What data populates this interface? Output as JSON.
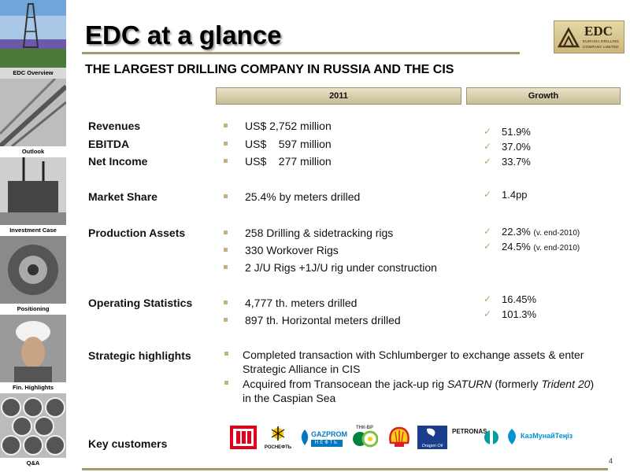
{
  "sidebar": {
    "items": [
      {
        "label": "EDC Overview",
        "active": true
      },
      {
        "label": "Outlook",
        "active": false
      },
      {
        "label": "Investment Case",
        "active": false
      },
      {
        "label": "Positioning",
        "active": false
      },
      {
        "label": "Fin. Highlights",
        "active": false
      },
      {
        "label": "Q&A",
        "active": false
      }
    ]
  },
  "header": {
    "title": "EDC at a glance",
    "subtitle": "THE LARGEST DRILLING COMPANY IN RUSSIA  AND THE CIS",
    "logo_main": "EDC",
    "logo_sub_1": "EURASIA DRILLING",
    "logo_sub_2": "COMPANY LIMITED"
  },
  "columns": {
    "year": "2011",
    "growth": "Growth"
  },
  "rows": {
    "revenues_label": "Revenues",
    "ebitda_label": "EBITDA",
    "net_income_label": "Net Income",
    "market_share_label": "Market Share",
    "production_assets_label": "Production Assets",
    "operating_statistics_label": "Operating Statistics",
    "strategic_highlights_label": "Strategic highlights",
    "key_customers_label": "Key customers"
  },
  "values": {
    "revenues": "US$ 2,752 million",
    "ebitda": "US$    597 million",
    "net_income": "US$    277 million",
    "market_share": "25.4% by meters drilled",
    "rigs_1": "258 Drilling & sidetracking rigs",
    "rigs_2": "330 Workover Rigs",
    "rigs_3": "2 J/U Rigs +1J/U rig under construction",
    "ops_1": "4,777 th. meters drilled",
    "ops_2": "897 th. Horizontal meters drilled"
  },
  "growth": {
    "revenues": "51.9%",
    "ebitda": "37.0%",
    "net_income": "33.7%",
    "market_share": "1.4pp",
    "rigs_1": "22.3%",
    "rigs_1_note": "(v. end-2010)",
    "rigs_2": "24.5%",
    "rigs_2_note": "(v. end-2010)",
    "ops_1": "16.45%",
    "ops_2": "101.3%"
  },
  "strategic": {
    "item_1": "Completed transaction with Schlumberger to exchange assets & enter Strategic Alliance in CIS",
    "item_2_a": "Acquired from Transocean the jack-up rig ",
    "item_2_b": "SATURN",
    "item_2_c": " (formerly ",
    "item_2_d": "Trident 20",
    "item_2_e": ") in the Caspian Sea"
  },
  "customers": {
    "rosneft": "РОСНЕФТЬ",
    "gazprom": "GAZPROM",
    "gazprom_sub": "НЕФТЬ",
    "tnkbp": "ТНК-ВР",
    "dragon": "Dragon Oil",
    "petronas": "PETRONAS",
    "kmg": "КазМунайТеңіз"
  },
  "page_number": "4",
  "colors": {
    "accent_gold": "#c4b27a",
    "rule": "#a8996a"
  }
}
